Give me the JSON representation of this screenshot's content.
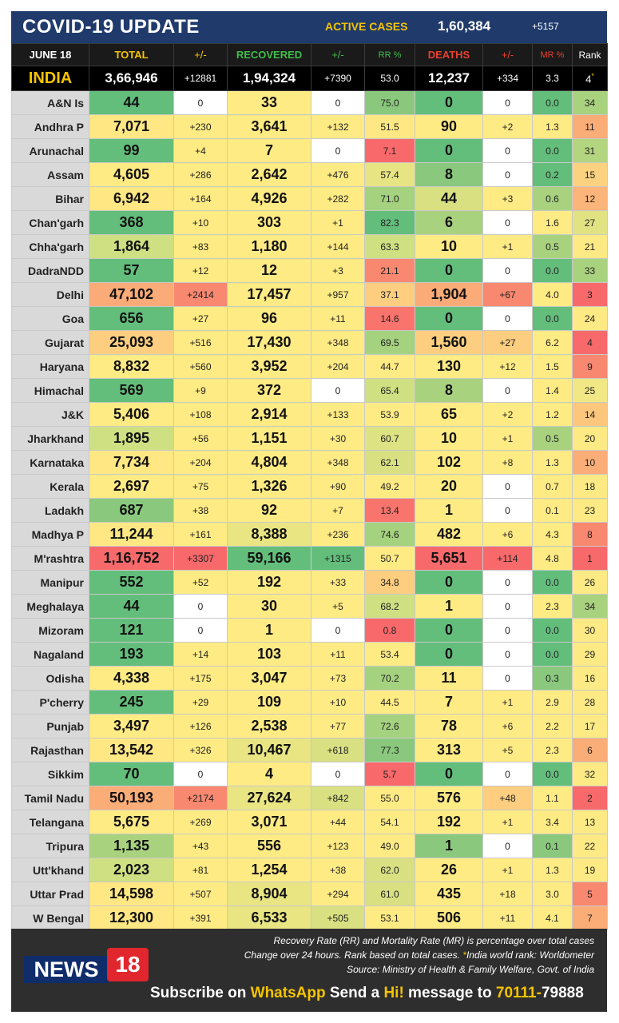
{
  "header": {
    "title": "COVID-19 UPDATE",
    "active_label": "ACTIVE CASES",
    "active_value": "1,60,384",
    "active_delta": "+5157"
  },
  "columns": {
    "date": "JUNE 18",
    "total": "TOTAL",
    "total_delta": "+/-",
    "recovered": "RECOVERED",
    "recovered_delta": "+/-",
    "rr": "RR %",
    "deaths": "DEATHS",
    "deaths_delta": "+/-",
    "mr": "MR %",
    "rank": "Rank"
  },
  "india": {
    "name": "INDIA",
    "total": "3,66,946",
    "total_delta": "+12881",
    "recovered": "1,94,324",
    "recovered_delta": "+7390",
    "rr": "53.0",
    "deaths": "12,237",
    "deaths_delta": "+334",
    "mr": "3.3",
    "rank": "4",
    "rank_mark": "*"
  },
  "rows": [
    {
      "state": "A&N Is",
      "total": "44",
      "td": "0",
      "rec": "33",
      "rd": "0",
      "rr": "75.0",
      "deaths": "0",
      "dd": "0",
      "mr": "0.0",
      "rank": "34",
      "c": [
        "#63be7b",
        "#ffffff",
        "#ffeb84",
        "#ffffff",
        "#8ac97d",
        "#63be7b",
        "#ffffff",
        "#63be7b",
        "#a9d27f"
      ]
    },
    {
      "state": "Andhra P",
      "total": "7,071",
      "td": "+230",
      "rec": "3,641",
      "rd": "+132",
      "rr": "51.5",
      "deaths": "90",
      "dd": "+2",
      "mr": "1.3",
      "rank": "11",
      "c": [
        "#ffe883",
        "#ffeb84",
        "#ffeb84",
        "#ffeb84",
        "#ffe883",
        "#ffeb84",
        "#ffeb84",
        "#ffeb84",
        "#fbad78"
      ]
    },
    {
      "state": "Arunachal",
      "total": "99",
      "td": "+4",
      "rec": "7",
      "rd": "0",
      "rr": "7.1",
      "deaths": "0",
      "dd": "0",
      "mr": "0.0",
      "rank": "31",
      "c": [
        "#63be7b",
        "#ffeb84",
        "#ffeb84",
        "#ffffff",
        "#f8696b",
        "#63be7b",
        "#ffffff",
        "#63be7b",
        "#b4d580"
      ]
    },
    {
      "state": "Assam",
      "total": "4,605",
      "td": "+286",
      "rec": "2,642",
      "rd": "+476",
      "rr": "57.4",
      "deaths": "8",
      "dd": "0",
      "mr": "0.2",
      "rank": "15",
      "c": [
        "#ffeb84",
        "#ffeb84",
        "#ffeb84",
        "#ffeb84",
        "#e7e483",
        "#8ac97d",
        "#ffffff",
        "#63be7b",
        "#fbd27f"
      ]
    },
    {
      "state": "Bihar",
      "total": "6,942",
      "td": "+164",
      "rec": "4,926",
      "rd": "+282",
      "rr": "71.0",
      "deaths": "44",
      "dd": "+3",
      "mr": "0.6",
      "rank": "12",
      "c": [
        "#ffe883",
        "#ffeb84",
        "#ffeb84",
        "#ffeb84",
        "#a5d27f",
        "#d8e082",
        "#ffeb84",
        "#a9d27f",
        "#fbb479"
      ]
    },
    {
      "state": "Chan'garh",
      "total": "368",
      "td": "+10",
      "rec": "303",
      "rd": "+1",
      "rr": "82.3",
      "deaths": "6",
      "dd": "0",
      "mr": "1.6",
      "rank": "27",
      "c": [
        "#63be7b",
        "#ffeb84",
        "#ffeb84",
        "#ffeb84",
        "#63be7b",
        "#a9d27f",
        "#ffffff",
        "#ffeb84",
        "#e1e383"
      ]
    },
    {
      "state": "Chha'garh",
      "total": "1,864",
      "td": "+83",
      "rec": "1,180",
      "rd": "+144",
      "rr": "63.3",
      "deaths": "10",
      "dd": "+1",
      "mr": "0.5",
      "rank": "21",
      "c": [
        "#cfe082",
        "#ffeb84",
        "#ffeb84",
        "#ffeb84",
        "#cfe082",
        "#ffeb84",
        "#ffeb84",
        "#a9d27f",
        "#fdea84"
      ]
    },
    {
      "state": "DadraNDD",
      "total": "57",
      "td": "+12",
      "rec": "12",
      "rd": "+3",
      "rr": "21.1",
      "deaths": "0",
      "dd": "0",
      "mr": "0.0",
      "rank": "33",
      "c": [
        "#63be7b",
        "#ffeb84",
        "#ffeb84",
        "#ffeb84",
        "#f98870",
        "#63be7b",
        "#ffffff",
        "#63be7b",
        "#a9d27f"
      ]
    },
    {
      "state": "Delhi",
      "total": "47,102",
      "td": "+2414",
      "rec": "17,457",
      "rd": "+957",
      "rr": "37.1",
      "deaths": "1,904",
      "dd": "+67",
      "mr": "4.0",
      "rank": "3",
      "c": [
        "#fbab77",
        "#f98870",
        "#ffeb84",
        "#ffeb84",
        "#fdce7f",
        "#fbab77",
        "#f98870",
        "#ffeb84",
        "#f8696b"
      ]
    },
    {
      "state": "Goa",
      "total": "656",
      "td": "+27",
      "rec": "96",
      "rd": "+11",
      "rr": "14.6",
      "deaths": "0",
      "dd": "0",
      "mr": "0.0",
      "rank": "24",
      "c": [
        "#63be7b",
        "#ffeb84",
        "#ffeb84",
        "#ffeb84",
        "#f8746d",
        "#63be7b",
        "#ffffff",
        "#63be7b",
        "#fdea84"
      ]
    },
    {
      "state": "Gujarat",
      "total": "25,093",
      "td": "+516",
      "rec": "17,430",
      "rd": "+348",
      "rr": "69.5",
      "deaths": "1,560",
      "dd": "+27",
      "mr": "6.2",
      "rank": "4",
      "c": [
        "#fdce7f",
        "#ffeb84",
        "#ffeb84",
        "#ffeb84",
        "#a5d27f",
        "#fdce7f",
        "#fdce7f",
        "#ffeb84",
        "#f8696b"
      ]
    },
    {
      "state": "Haryana",
      "total": "8,832",
      "td": "+560",
      "rec": "3,952",
      "rd": "+204",
      "rr": "44.7",
      "deaths": "130",
      "dd": "+12",
      "mr": "1.5",
      "rank": "9",
      "c": [
        "#ffeb84",
        "#ffeb84",
        "#ffeb84",
        "#ffeb84",
        "#ffeb84",
        "#ffeb84",
        "#ffeb84",
        "#ffeb84",
        "#f98870"
      ]
    },
    {
      "state": "Himachal",
      "total": "569",
      "td": "+9",
      "rec": "372",
      "rd": "0",
      "rr": "65.4",
      "deaths": "8",
      "dd": "0",
      "mr": "1.4",
      "rank": "25",
      "c": [
        "#63be7b",
        "#ffeb84",
        "#ffeb84",
        "#ffffff",
        "#cfe082",
        "#a9d27f",
        "#ffffff",
        "#ffeb84",
        "#f1e784"
      ]
    },
    {
      "state": "J&K",
      "total": "5,406",
      "td": "+108",
      "rec": "2,914",
      "rd": "+133",
      "rr": "53.9",
      "deaths": "65",
      "dd": "+2",
      "mr": "1.2",
      "rank": "14",
      "c": [
        "#ffeb84",
        "#ffeb84",
        "#ffeb84",
        "#ffeb84",
        "#ffeb84",
        "#ffeb84",
        "#ffeb84",
        "#ffeb84",
        "#fcc77d"
      ]
    },
    {
      "state": "Jharkhand",
      "total": "1,895",
      "td": "+56",
      "rec": "1,151",
      "rd": "+30",
      "rr": "60.7",
      "deaths": "10",
      "dd": "+1",
      "mr": "0.5",
      "rank": "20",
      "c": [
        "#cfe082",
        "#ffeb84",
        "#ffeb84",
        "#ffeb84",
        "#dde282",
        "#ffeb84",
        "#ffeb84",
        "#a9d27f",
        "#fdea84"
      ]
    },
    {
      "state": "Karnataka",
      "total": "7,734",
      "td": "+204",
      "rec": "4,804",
      "rd": "+348",
      "rr": "62.1",
      "deaths": "102",
      "dd": "+8",
      "mr": "1.3",
      "rank": "10",
      "c": [
        "#ffe883",
        "#ffeb84",
        "#ffeb84",
        "#ffeb84",
        "#d8e082",
        "#ffeb84",
        "#ffeb84",
        "#ffeb84",
        "#fbad78"
      ]
    },
    {
      "state": "Kerala",
      "total": "2,697",
      "td": "+75",
      "rec": "1,326",
      "rd": "+90",
      "rr": "49.2",
      "deaths": "20",
      "dd": "0",
      "mr": "0.7",
      "rank": "18",
      "c": [
        "#ffeb84",
        "#ffeb84",
        "#ffeb84",
        "#ffeb84",
        "#ffeb84",
        "#ffeb84",
        "#ffffff",
        "#ffeb84",
        "#fdea84"
      ]
    },
    {
      "state": "Ladakh",
      "total": "687",
      "td": "+38",
      "rec": "92",
      "rd": "+7",
      "rr": "13.4",
      "deaths": "1",
      "dd": "0",
      "mr": "0.1",
      "rank": "23",
      "c": [
        "#8ac97d",
        "#ffeb84",
        "#ffeb84",
        "#ffeb84",
        "#f8746d",
        "#ffeb84",
        "#ffffff",
        "#ffeb84",
        "#fdea84"
      ]
    },
    {
      "state": "Madhya P",
      "total": "11,244",
      "td": "+161",
      "rec": "8,388",
      "rd": "+236",
      "rr": "74.6",
      "deaths": "482",
      "dd": "+6",
      "mr": "4.3",
      "rank": "8",
      "c": [
        "#ffe883",
        "#ffeb84",
        "#e9e583",
        "#ffeb84",
        "#a5d27f",
        "#ffeb84",
        "#ffeb84",
        "#ffeb84",
        "#f98870"
      ]
    },
    {
      "state": "M'rashtra",
      "total": "1,16,752",
      "td": "+3307",
      "rec": "59,166",
      "rd": "+1315",
      "rr": "50.7",
      "deaths": "5,651",
      "dd": "+114",
      "mr": "4.8",
      "rank": "1",
      "c": [
        "#f8696b",
        "#f8696b",
        "#63be7b",
        "#63be7b",
        "#ffeb84",
        "#f8696b",
        "#f8696b",
        "#ffeb84",
        "#f8696b"
      ]
    },
    {
      "state": "Manipur",
      "total": "552",
      "td": "+52",
      "rec": "192",
      "rd": "+33",
      "rr": "34.8",
      "deaths": "0",
      "dd": "0",
      "mr": "0.0",
      "rank": "26",
      "c": [
        "#63be7b",
        "#ffeb84",
        "#ffeb84",
        "#ffeb84",
        "#fdce7f",
        "#63be7b",
        "#ffffff",
        "#63be7b",
        "#fdea84"
      ]
    },
    {
      "state": "Meghalaya",
      "total": "44",
      "td": "0",
      "rec": "30",
      "rd": "+5",
      "rr": "68.2",
      "deaths": "1",
      "dd": "0",
      "mr": "2.3",
      "rank": "34",
      "c": [
        "#63be7b",
        "#ffffff",
        "#ffeb84",
        "#ffeb84",
        "#cfe082",
        "#ffeb84",
        "#ffffff",
        "#ffeb84",
        "#a9d27f"
      ]
    },
    {
      "state": "Mizoram",
      "total": "121",
      "td": "0",
      "rec": "1",
      "rd": "0",
      "rr": "0.8",
      "deaths": "0",
      "dd": "0",
      "mr": "0.0",
      "rank": "30",
      "c": [
        "#63be7b",
        "#ffffff",
        "#ffeb84",
        "#ffffff",
        "#f8696b",
        "#63be7b",
        "#ffffff",
        "#63be7b",
        "#fdea84"
      ]
    },
    {
      "state": "Nagaland",
      "total": "193",
      "td": "+14",
      "rec": "103",
      "rd": "+11",
      "rr": "53.4",
      "deaths": "0",
      "dd": "0",
      "mr": "0.0",
      "rank": "29",
      "c": [
        "#63be7b",
        "#ffeb84",
        "#ffeb84",
        "#ffeb84",
        "#ffeb84",
        "#63be7b",
        "#ffffff",
        "#63be7b",
        "#fdea84"
      ]
    },
    {
      "state": "Odisha",
      "total": "4,338",
      "td": "+175",
      "rec": "3,047",
      "rd": "+73",
      "rr": "70.2",
      "deaths": "11",
      "dd": "0",
      "mr": "0.3",
      "rank": "16",
      "c": [
        "#ffeb84",
        "#ffeb84",
        "#ffeb84",
        "#ffeb84",
        "#a5d27f",
        "#ffeb84",
        "#ffffff",
        "#8ac97d",
        "#fdea84"
      ]
    },
    {
      "state": "P'cherry",
      "total": "245",
      "td": "+29",
      "rec": "109",
      "rd": "+10",
      "rr": "44.5",
      "deaths": "7",
      "dd": "+1",
      "mr": "2.9",
      "rank": "28",
      "c": [
        "#63be7b",
        "#ffeb84",
        "#ffeb84",
        "#ffeb84",
        "#ffeb84",
        "#ffeb84",
        "#ffeb84",
        "#ffeb84",
        "#fdea84"
      ]
    },
    {
      "state": "Punjab",
      "total": "3,497",
      "td": "+126",
      "rec": "2,538",
      "rd": "+77",
      "rr": "72.6",
      "deaths": "78",
      "dd": "+6",
      "mr": "2.2",
      "rank": "17",
      "c": [
        "#ffeb84",
        "#ffeb84",
        "#ffeb84",
        "#ffeb84",
        "#a5d27f",
        "#ffeb84",
        "#ffeb84",
        "#ffeb84",
        "#fdea84"
      ]
    },
    {
      "state": "Rajasthan",
      "total": "13,542",
      "td": "+326",
      "rec": "10,467",
      "rd": "+618",
      "rr": "77.3",
      "deaths": "313",
      "dd": "+5",
      "mr": "2.3",
      "rank": "6",
      "c": [
        "#ffe883",
        "#ffeb84",
        "#e9e583",
        "#d8e082",
        "#8ac97d",
        "#ffeb84",
        "#ffeb84",
        "#ffeb84",
        "#fbad78"
      ]
    },
    {
      "state": "Sikkim",
      "total": "70",
      "td": "0",
      "rec": "4",
      "rd": "0",
      "rr": "5.7",
      "deaths": "0",
      "dd": "0",
      "mr": "0.0",
      "rank": "32",
      "c": [
        "#63be7b",
        "#ffffff",
        "#ffeb84",
        "#ffffff",
        "#f8696b",
        "#63be7b",
        "#ffffff",
        "#63be7b",
        "#fdea84"
      ]
    },
    {
      "state": "Tamil Nadu",
      "total": "50,193",
      "td": "+2174",
      "rec": "27,624",
      "rd": "+842",
      "rr": "55.0",
      "deaths": "576",
      "dd": "+48",
      "mr": "1.1",
      "rank": "2",
      "c": [
        "#fbad78",
        "#f98870",
        "#e9e583",
        "#d8e082",
        "#ffeb84",
        "#ffeb84",
        "#fdce7f",
        "#ffeb84",
        "#f8696b"
      ]
    },
    {
      "state": "Telangana",
      "total": "5,675",
      "td": "+269",
      "rec": "3,071",
      "rd": "+44",
      "rr": "54.1",
      "deaths": "192",
      "dd": "+1",
      "mr": "3.4",
      "rank": "13",
      "c": [
        "#ffeb84",
        "#ffeb84",
        "#ffeb84",
        "#ffeb84",
        "#ffeb84",
        "#ffeb84",
        "#ffeb84",
        "#ffeb84",
        "#fdea84"
      ]
    },
    {
      "state": "Tripura",
      "total": "1,135",
      "td": "+43",
      "rec": "556",
      "rd": "+123",
      "rr": "49.0",
      "deaths": "1",
      "dd": "0",
      "mr": "0.1",
      "rank": "22",
      "c": [
        "#a9d27f",
        "#ffeb84",
        "#ffeb84",
        "#ffeb84",
        "#ffeb84",
        "#8ac97d",
        "#ffffff",
        "#8ac97d",
        "#fdea84"
      ]
    },
    {
      "state": "Utt'khand",
      "total": "2,023",
      "td": "+81",
      "rec": "1,254",
      "rd": "+38",
      "rr": "62.0",
      "deaths": "26",
      "dd": "+1",
      "mr": "1.3",
      "rank": "19",
      "c": [
        "#cfe082",
        "#ffeb84",
        "#ffeb84",
        "#ffeb84",
        "#d8e082",
        "#ffeb84",
        "#ffeb84",
        "#ffeb84",
        "#fdea84"
      ]
    },
    {
      "state": "Uttar Prad",
      "total": "14,598",
      "td": "+507",
      "rec": "8,904",
      "rd": "+294",
      "rr": "61.0",
      "deaths": "435",
      "dd": "+18",
      "mr": "3.0",
      "rank": "5",
      "c": [
        "#ffe883",
        "#ffeb84",
        "#e9e583",
        "#ffeb84",
        "#d8e082",
        "#ffeb84",
        "#ffeb84",
        "#ffeb84",
        "#f98870"
      ]
    },
    {
      "state": "W Bengal",
      "total": "12,300",
      "td": "+391",
      "rec": "6,533",
      "rd": "+505",
      "rr": "53.1",
      "deaths": "506",
      "dd": "+11",
      "mr": "4.1",
      "rank": "7",
      "c": [
        "#ffe883",
        "#ffeb84",
        "#e9e583",
        "#d8e082",
        "#ffeb84",
        "#ffeb84",
        "#ffeb84",
        "#ffeb84",
        "#fbad78"
      ]
    }
  ],
  "footer": {
    "note1": "Recovery Rate (RR) and Mortality Rate (MR) is percentage over total cases",
    "note2_a": "Change over 24 hours. Rank based on total cases. ",
    "note2_star": "*",
    "note2_b": "India world rank: Worldometer",
    "note3": "Source: Ministry of Health & Family Welfare, Govt. of India",
    "logo_text": "NEWS",
    "logo_num": "18",
    "subscribe_a": "Subscribe on ",
    "subscribe_b": "WhatsApp",
    "subscribe_c": " Send a ",
    "subscribe_d": "Hi!",
    "subscribe_e": " message to ",
    "subscribe_f": "70111-",
    "subscribe_g": "79888"
  }
}
